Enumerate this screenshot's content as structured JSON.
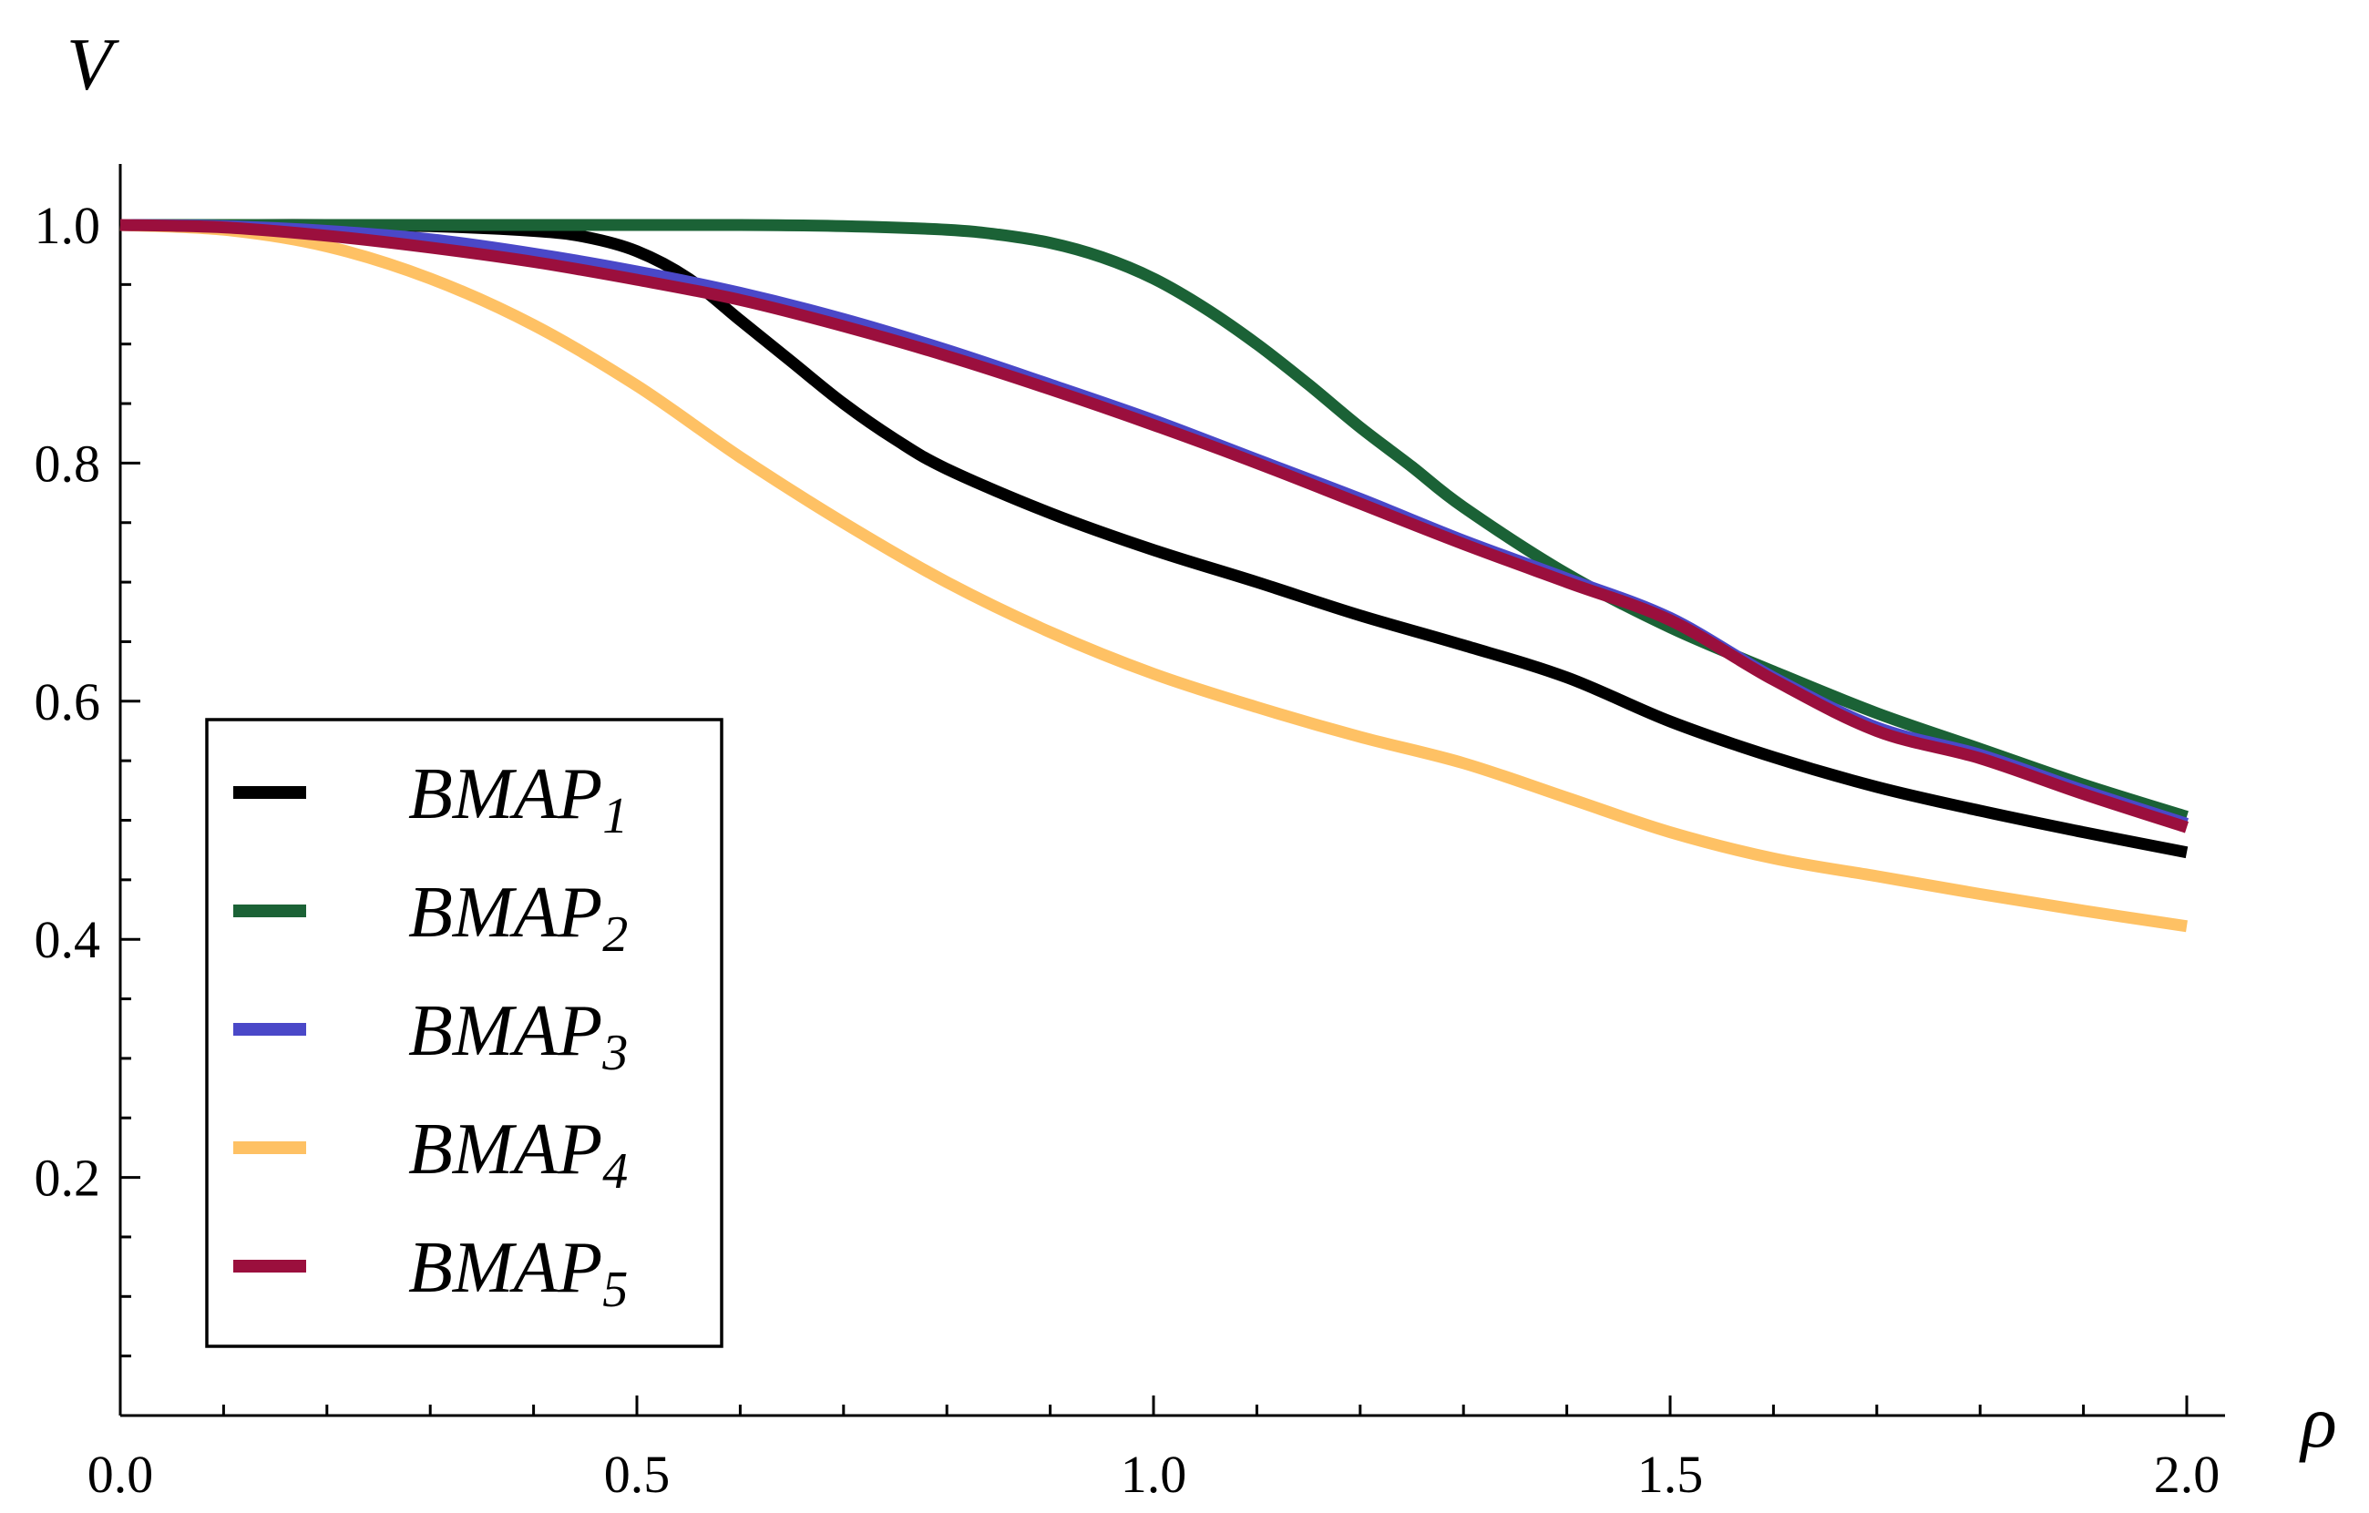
{
  "chart_data": {
    "type": "line",
    "title": "",
    "xlabel": "ρ",
    "ylabel": "V",
    "xlim": [
      0,
      2.04
    ],
    "ylim": [
      0,
      1.05
    ],
    "x_ticks": [
      {
        "value": 0.0,
        "label": "0.0"
      },
      {
        "value": 0.5,
        "label": "0.5"
      },
      {
        "value": 1.0,
        "label": "1.0"
      },
      {
        "value": 1.5,
        "label": "1.5"
      },
      {
        "value": 2.0,
        "label": "2.0"
      }
    ],
    "y_ticks": [
      {
        "value": 0.2,
        "label": "0.2"
      },
      {
        "value": 0.4,
        "label": "0.4"
      },
      {
        "value": 0.6,
        "label": "0.6"
      },
      {
        "value": 0.8,
        "label": "0.8"
      },
      {
        "value": 1.0,
        "label": "1.0"
      }
    ],
    "legend_position": "bottom-left",
    "grid": false,
    "series": [
      {
        "name": "BMAP",
        "subscript": "1",
        "color": "#000000",
        "x": [
          0,
          0.1,
          0.2,
          0.3,
          0.4,
          0.45,
          0.5,
          0.55,
          0.6,
          0.65,
          0.7,
          0.75,
          0.8,
          0.9,
          1.0,
          1.1,
          1.2,
          1.3,
          1.4,
          1.5,
          1.6,
          1.7,
          1.8,
          1.9,
          2.0
        ],
        "y": [
          1.0,
          1.0,
          1.0,
          0.999,
          0.995,
          0.99,
          0.978,
          0.955,
          0.92,
          0.885,
          0.85,
          0.82,
          0.795,
          0.758,
          0.727,
          0.7,
          0.672,
          0.647,
          0.62,
          0.583,
          0.553,
          0.528,
          0.508,
          0.49,
          0.473
        ]
      },
      {
        "name": "BMAP",
        "subscript": "2",
        "color": "#1b6236",
        "x": [
          0,
          0.2,
          0.4,
          0.6,
          0.7,
          0.8,
          0.85,
          0.9,
          0.95,
          1.0,
          1.05,
          1.1,
          1.15,
          1.2,
          1.25,
          1.3,
          1.4,
          1.5,
          1.6,
          1.7,
          1.8,
          1.9,
          2.0
        ],
        "y": [
          1.0,
          1.0,
          1.0,
          1.0,
          0.999,
          0.996,
          0.992,
          0.985,
          0.973,
          0.955,
          0.93,
          0.9,
          0.866,
          0.83,
          0.797,
          0.763,
          0.707,
          0.662,
          0.625,
          0.59,
          0.56,
          0.53,
          0.503
        ]
      },
      {
        "name": "BMAP",
        "subscript": "3",
        "color": "#4a48c8",
        "x": [
          0,
          0.1,
          0.2,
          0.3,
          0.4,
          0.5,
          0.6,
          0.7,
          0.8,
          0.9,
          1.0,
          1.1,
          1.2,
          1.3,
          1.4,
          1.5,
          1.6,
          1.7,
          1.8,
          1.9,
          2.0
        ],
        "y": [
          1.0,
          0.999,
          0.995,
          0.988,
          0.976,
          0.961,
          0.943,
          0.921,
          0.895,
          0.866,
          0.836,
          0.803,
          0.77,
          0.735,
          0.703,
          0.67,
          0.62,
          0.578,
          0.555,
          0.525,
          0.497
        ]
      },
      {
        "name": "BMAP",
        "subscript": "4",
        "color": "#fec164",
        "x": [
          0,
          0.1,
          0.2,
          0.3,
          0.4,
          0.5,
          0.6,
          0.7,
          0.8,
          0.9,
          1.0,
          1.1,
          1.2,
          1.3,
          1.4,
          1.5,
          1.6,
          1.7,
          1.8,
          1.9,
          2.0
        ],
        "y": [
          1.0,
          0.996,
          0.982,
          0.955,
          0.916,
          0.865,
          0.805,
          0.75,
          0.7,
          0.658,
          0.623,
          0.595,
          0.57,
          0.548,
          0.519,
          0.49,
          0.468,
          0.453,
          0.438,
          0.424,
          0.411
        ]
      },
      {
        "name": "BMAP",
        "subscript": "5",
        "color": "#9b0f3d",
        "x": [
          0,
          0.1,
          0.2,
          0.3,
          0.4,
          0.5,
          0.6,
          0.7,
          0.8,
          0.9,
          1.0,
          1.1,
          1.2,
          1.3,
          1.4,
          1.5,
          1.6,
          1.7,
          1.8,
          1.9,
          2.0
        ],
        "y": [
          1.0,
          0.998,
          0.991,
          0.981,
          0.969,
          0.954,
          0.937,
          0.915,
          0.89,
          0.862,
          0.832,
          0.8,
          0.766,
          0.732,
          0.7,
          0.668,
          0.618,
          0.575,
          0.552,
          0.522,
          0.494
        ]
      }
    ]
  }
}
